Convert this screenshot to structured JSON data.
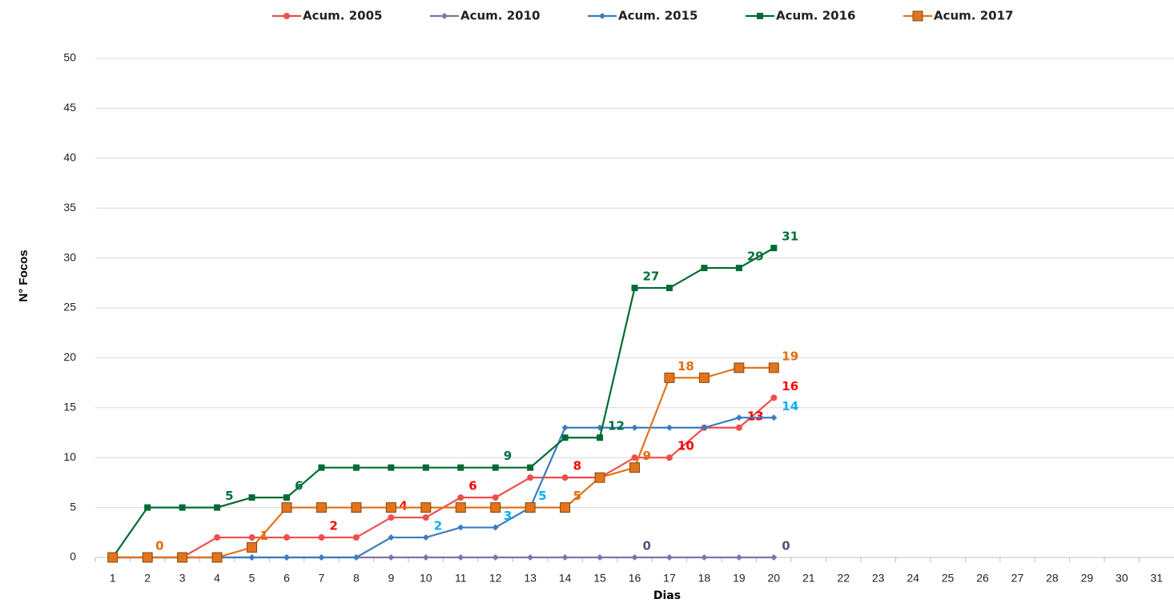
{
  "chart_data": {
    "type": "line",
    "x_label": "Dias",
    "y_label": "N° Focos",
    "categories": [
      "1",
      "2",
      "3",
      "4",
      "5",
      "6",
      "7",
      "8",
      "9",
      "10",
      "11",
      "12",
      "13",
      "14",
      "15",
      "16",
      "17",
      "18",
      "19",
      "20",
      "21",
      "22",
      "23",
      "24",
      "25",
      "26",
      "27",
      "28",
      "29",
      "30",
      "31"
    ],
    "ylim": [
      0,
      50
    ],
    "yticks": [
      0,
      5,
      10,
      15,
      20,
      25,
      30,
      35,
      40,
      45,
      50
    ],
    "grid": true,
    "legend": "top",
    "series": [
      {
        "name": "Acum. 2005",
        "color": "#ef4d4d",
        "marker": "circle",
        "label_color": "#ff0000",
        "values": [
          0,
          0,
          0,
          2,
          2,
          2,
          2,
          2,
          4,
          4,
          6,
          6,
          8,
          8,
          8,
          10,
          10,
          13,
          13,
          16,
          null,
          null,
          null,
          null,
          null,
          null,
          null,
          null,
          null,
          null,
          null
        ],
        "label_points": [
          6,
          8,
          10,
          13,
          16,
          18,
          19
        ]
      },
      {
        "name": "Acum. 2010",
        "color": "#8073ac",
        "marker": "diamond",
        "label_color": "#604a7b",
        "values": [
          0,
          0,
          0,
          0,
          0,
          0,
          0,
          0,
          0,
          0,
          0,
          0,
          0,
          0,
          0,
          0,
          0,
          0,
          0,
          0,
          null,
          null,
          null,
          null,
          null,
          null,
          null,
          null,
          null,
          null,
          null
        ],
        "label_points": [
          15,
          19
        ]
      },
      {
        "name": "Acum. 2015",
        "color": "#3a7dc0",
        "marker": "diamond",
        "label_color": "#00b0f0",
        "values": [
          0,
          0,
          0,
          0,
          0,
          0,
          0,
          0,
          2,
          2,
          3,
          3,
          5,
          13,
          13,
          13,
          13,
          13,
          14,
          14,
          null,
          null,
          null,
          null,
          null,
          null,
          null,
          null,
          null,
          null,
          null
        ],
        "label_points": [
          9,
          11,
          12,
          19
        ]
      },
      {
        "name": "Acum. 2016",
        "color": "#006b33",
        "marker": "square",
        "label_color": "#00703c",
        "values": [
          0,
          5,
          5,
          5,
          6,
          6,
          9,
          9,
          9,
          9,
          9,
          9,
          9,
          12,
          12,
          27,
          27,
          29,
          29,
          31,
          null,
          null,
          null,
          null,
          null,
          null,
          null,
          null,
          null,
          null,
          null
        ],
        "label_points": [
          3,
          5,
          11,
          14,
          15,
          18,
          19
        ]
      },
      {
        "name": "Acum. 2017",
        "color": "#e4731b",
        "marker": "bigsquare",
        "label_color": "#e46c0a",
        "values": [
          0,
          0,
          0,
          0,
          1,
          5,
          5,
          5,
          5,
          5,
          5,
          5,
          5,
          5,
          8,
          9,
          18,
          18,
          19,
          19,
          null,
          null,
          null,
          null,
          null,
          null,
          null,
          null,
          null,
          null,
          null
        ],
        "label_points": [
          1,
          4,
          13,
          15,
          16,
          19
        ]
      }
    ]
  }
}
